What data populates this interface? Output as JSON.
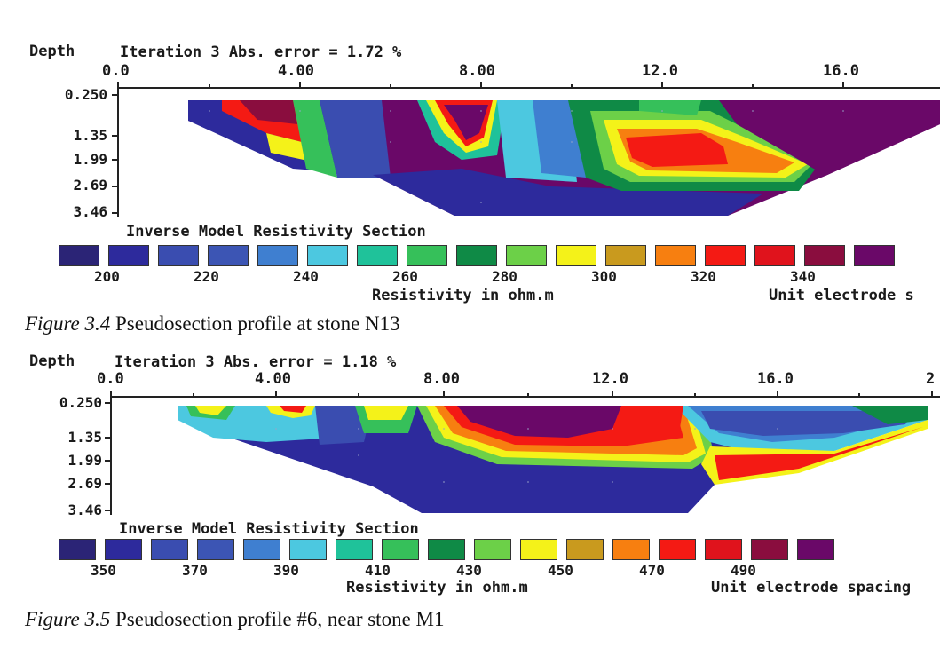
{
  "figures": [
    {
      "depth_label": "Depth",
      "iteration_text": "Iteration 3 Abs. error = 1.72 %",
      "x_ticks": [
        "0.0",
        "4.00",
        "8.00",
        "12.0",
        "16.0"
      ],
      "depth_ticks": [
        "0.250",
        "1.35",
        "1.99",
        "2.69",
        "3.46"
      ],
      "section_title": "Inverse Model Resistivity Section",
      "color_values": [
        "200",
        "220",
        "240",
        "260",
        "280",
        "300",
        "320",
        "340"
      ],
      "axis_label": "Resistivity in ohm.m",
      "spacing_label": "Unit electrode s",
      "caption_num": "Figure 3.4",
      "caption_text": " Pseudosection profile at stone N13"
    },
    {
      "depth_label": "Depth",
      "iteration_text": "Iteration 3 Abs. error = 1.18 %",
      "x_ticks": [
        "0.0",
        "4.00",
        "8.00",
        "12.0",
        "16.0",
        "2"
      ],
      "depth_ticks": [
        "0.250",
        "1.35",
        "1.99",
        "2.69",
        "3.46"
      ],
      "section_title": "Inverse Model Resistivity Section",
      "color_values": [
        "350",
        "370",
        "390",
        "410",
        "430",
        "450",
        "470",
        "490"
      ],
      "axis_label": "Resistivity in ohm.m",
      "spacing_label": "Unit electrode spacing",
      "caption_num": "Figure 3.5",
      "caption_text": " Pseudosection profile #6, near stone M1"
    }
  ],
  "palette": [
    "#2b2476",
    "#2d2a9c",
    "#3a4db0",
    "#3c55b4",
    "#3f7fd0",
    "#4cc8e0",
    "#1fc29a",
    "#36c05a",
    "#0f8a46",
    "#6cd048",
    "#f4f219",
    "#c99a1e",
    "#f77f10",
    "#f41a14",
    "#e0131c",
    "#8a0d3e",
    "#6a0868"
  ]
}
